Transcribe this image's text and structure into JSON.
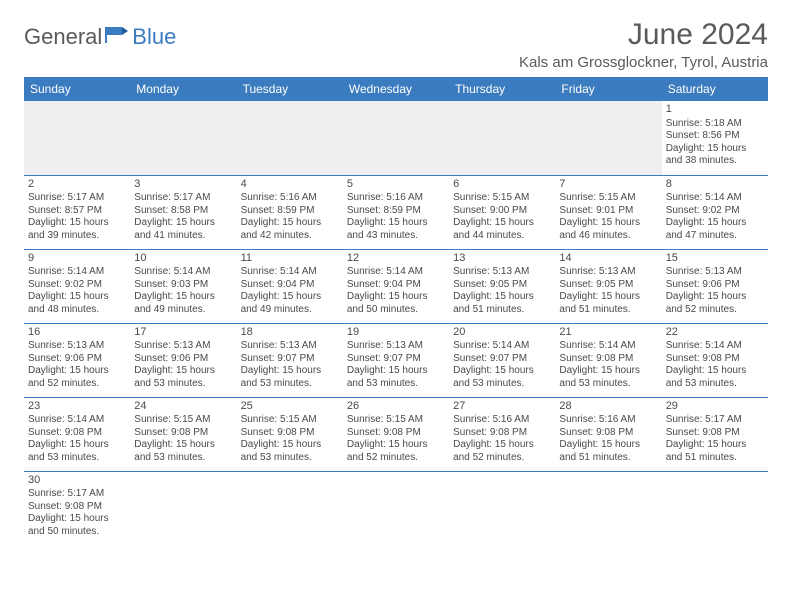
{
  "logo": {
    "part1": "General",
    "part2": "Blue"
  },
  "title": "June 2024",
  "location": "Kals am Grossglockner, Tyrol, Austria",
  "colors": {
    "header_bg": "#3b7bbf",
    "header_text": "#ffffff",
    "text": "#5a5a5a",
    "cell_text": "#4a4a4a",
    "empty_bg": "#efefef",
    "border": "#3b7bbf"
  },
  "weekdays": [
    "Sunday",
    "Monday",
    "Tuesday",
    "Wednesday",
    "Thursday",
    "Friday",
    "Saturday"
  ],
  "weeks": [
    [
      null,
      null,
      null,
      null,
      null,
      null,
      {
        "d": "1",
        "sr": "5:18 AM",
        "ss": "8:56 PM",
        "dl": "15 hours and 38 minutes."
      }
    ],
    [
      {
        "d": "2",
        "sr": "5:17 AM",
        "ss": "8:57 PM",
        "dl": "15 hours and 39 minutes."
      },
      {
        "d": "3",
        "sr": "5:17 AM",
        "ss": "8:58 PM",
        "dl": "15 hours and 41 minutes."
      },
      {
        "d": "4",
        "sr": "5:16 AM",
        "ss": "8:59 PM",
        "dl": "15 hours and 42 minutes."
      },
      {
        "d": "5",
        "sr": "5:16 AM",
        "ss": "8:59 PM",
        "dl": "15 hours and 43 minutes."
      },
      {
        "d": "6",
        "sr": "5:15 AM",
        "ss": "9:00 PM",
        "dl": "15 hours and 44 minutes."
      },
      {
        "d": "7",
        "sr": "5:15 AM",
        "ss": "9:01 PM",
        "dl": "15 hours and 46 minutes."
      },
      {
        "d": "8",
        "sr": "5:14 AM",
        "ss": "9:02 PM",
        "dl": "15 hours and 47 minutes."
      }
    ],
    [
      {
        "d": "9",
        "sr": "5:14 AM",
        "ss": "9:02 PM",
        "dl": "15 hours and 48 minutes."
      },
      {
        "d": "10",
        "sr": "5:14 AM",
        "ss": "9:03 PM",
        "dl": "15 hours and 49 minutes."
      },
      {
        "d": "11",
        "sr": "5:14 AM",
        "ss": "9:04 PM",
        "dl": "15 hours and 49 minutes."
      },
      {
        "d": "12",
        "sr": "5:14 AM",
        "ss": "9:04 PM",
        "dl": "15 hours and 50 minutes."
      },
      {
        "d": "13",
        "sr": "5:13 AM",
        "ss": "9:05 PM",
        "dl": "15 hours and 51 minutes."
      },
      {
        "d": "14",
        "sr": "5:13 AM",
        "ss": "9:05 PM",
        "dl": "15 hours and 51 minutes."
      },
      {
        "d": "15",
        "sr": "5:13 AM",
        "ss": "9:06 PM",
        "dl": "15 hours and 52 minutes."
      }
    ],
    [
      {
        "d": "16",
        "sr": "5:13 AM",
        "ss": "9:06 PM",
        "dl": "15 hours and 52 minutes."
      },
      {
        "d": "17",
        "sr": "5:13 AM",
        "ss": "9:06 PM",
        "dl": "15 hours and 53 minutes."
      },
      {
        "d": "18",
        "sr": "5:13 AM",
        "ss": "9:07 PM",
        "dl": "15 hours and 53 minutes."
      },
      {
        "d": "19",
        "sr": "5:13 AM",
        "ss": "9:07 PM",
        "dl": "15 hours and 53 minutes."
      },
      {
        "d": "20",
        "sr": "5:14 AM",
        "ss": "9:07 PM",
        "dl": "15 hours and 53 minutes."
      },
      {
        "d": "21",
        "sr": "5:14 AM",
        "ss": "9:08 PM",
        "dl": "15 hours and 53 minutes."
      },
      {
        "d": "22",
        "sr": "5:14 AM",
        "ss": "9:08 PM",
        "dl": "15 hours and 53 minutes."
      }
    ],
    [
      {
        "d": "23",
        "sr": "5:14 AM",
        "ss": "9:08 PM",
        "dl": "15 hours and 53 minutes."
      },
      {
        "d": "24",
        "sr": "5:15 AM",
        "ss": "9:08 PM",
        "dl": "15 hours and 53 minutes."
      },
      {
        "d": "25",
        "sr": "5:15 AM",
        "ss": "9:08 PM",
        "dl": "15 hours and 53 minutes."
      },
      {
        "d": "26",
        "sr": "5:15 AM",
        "ss": "9:08 PM",
        "dl": "15 hours and 52 minutes."
      },
      {
        "d": "27",
        "sr": "5:16 AM",
        "ss": "9:08 PM",
        "dl": "15 hours and 52 minutes."
      },
      {
        "d": "28",
        "sr": "5:16 AM",
        "ss": "9:08 PM",
        "dl": "15 hours and 51 minutes."
      },
      {
        "d": "29",
        "sr": "5:17 AM",
        "ss": "9:08 PM",
        "dl": "15 hours and 51 minutes."
      }
    ],
    [
      {
        "d": "30",
        "sr": "5:17 AM",
        "ss": "9:08 PM",
        "dl": "15 hours and 50 minutes."
      },
      null,
      null,
      null,
      null,
      null,
      null
    ]
  ],
  "labels": {
    "sunrise": "Sunrise:",
    "sunset": "Sunset:",
    "daylight": "Daylight:"
  }
}
